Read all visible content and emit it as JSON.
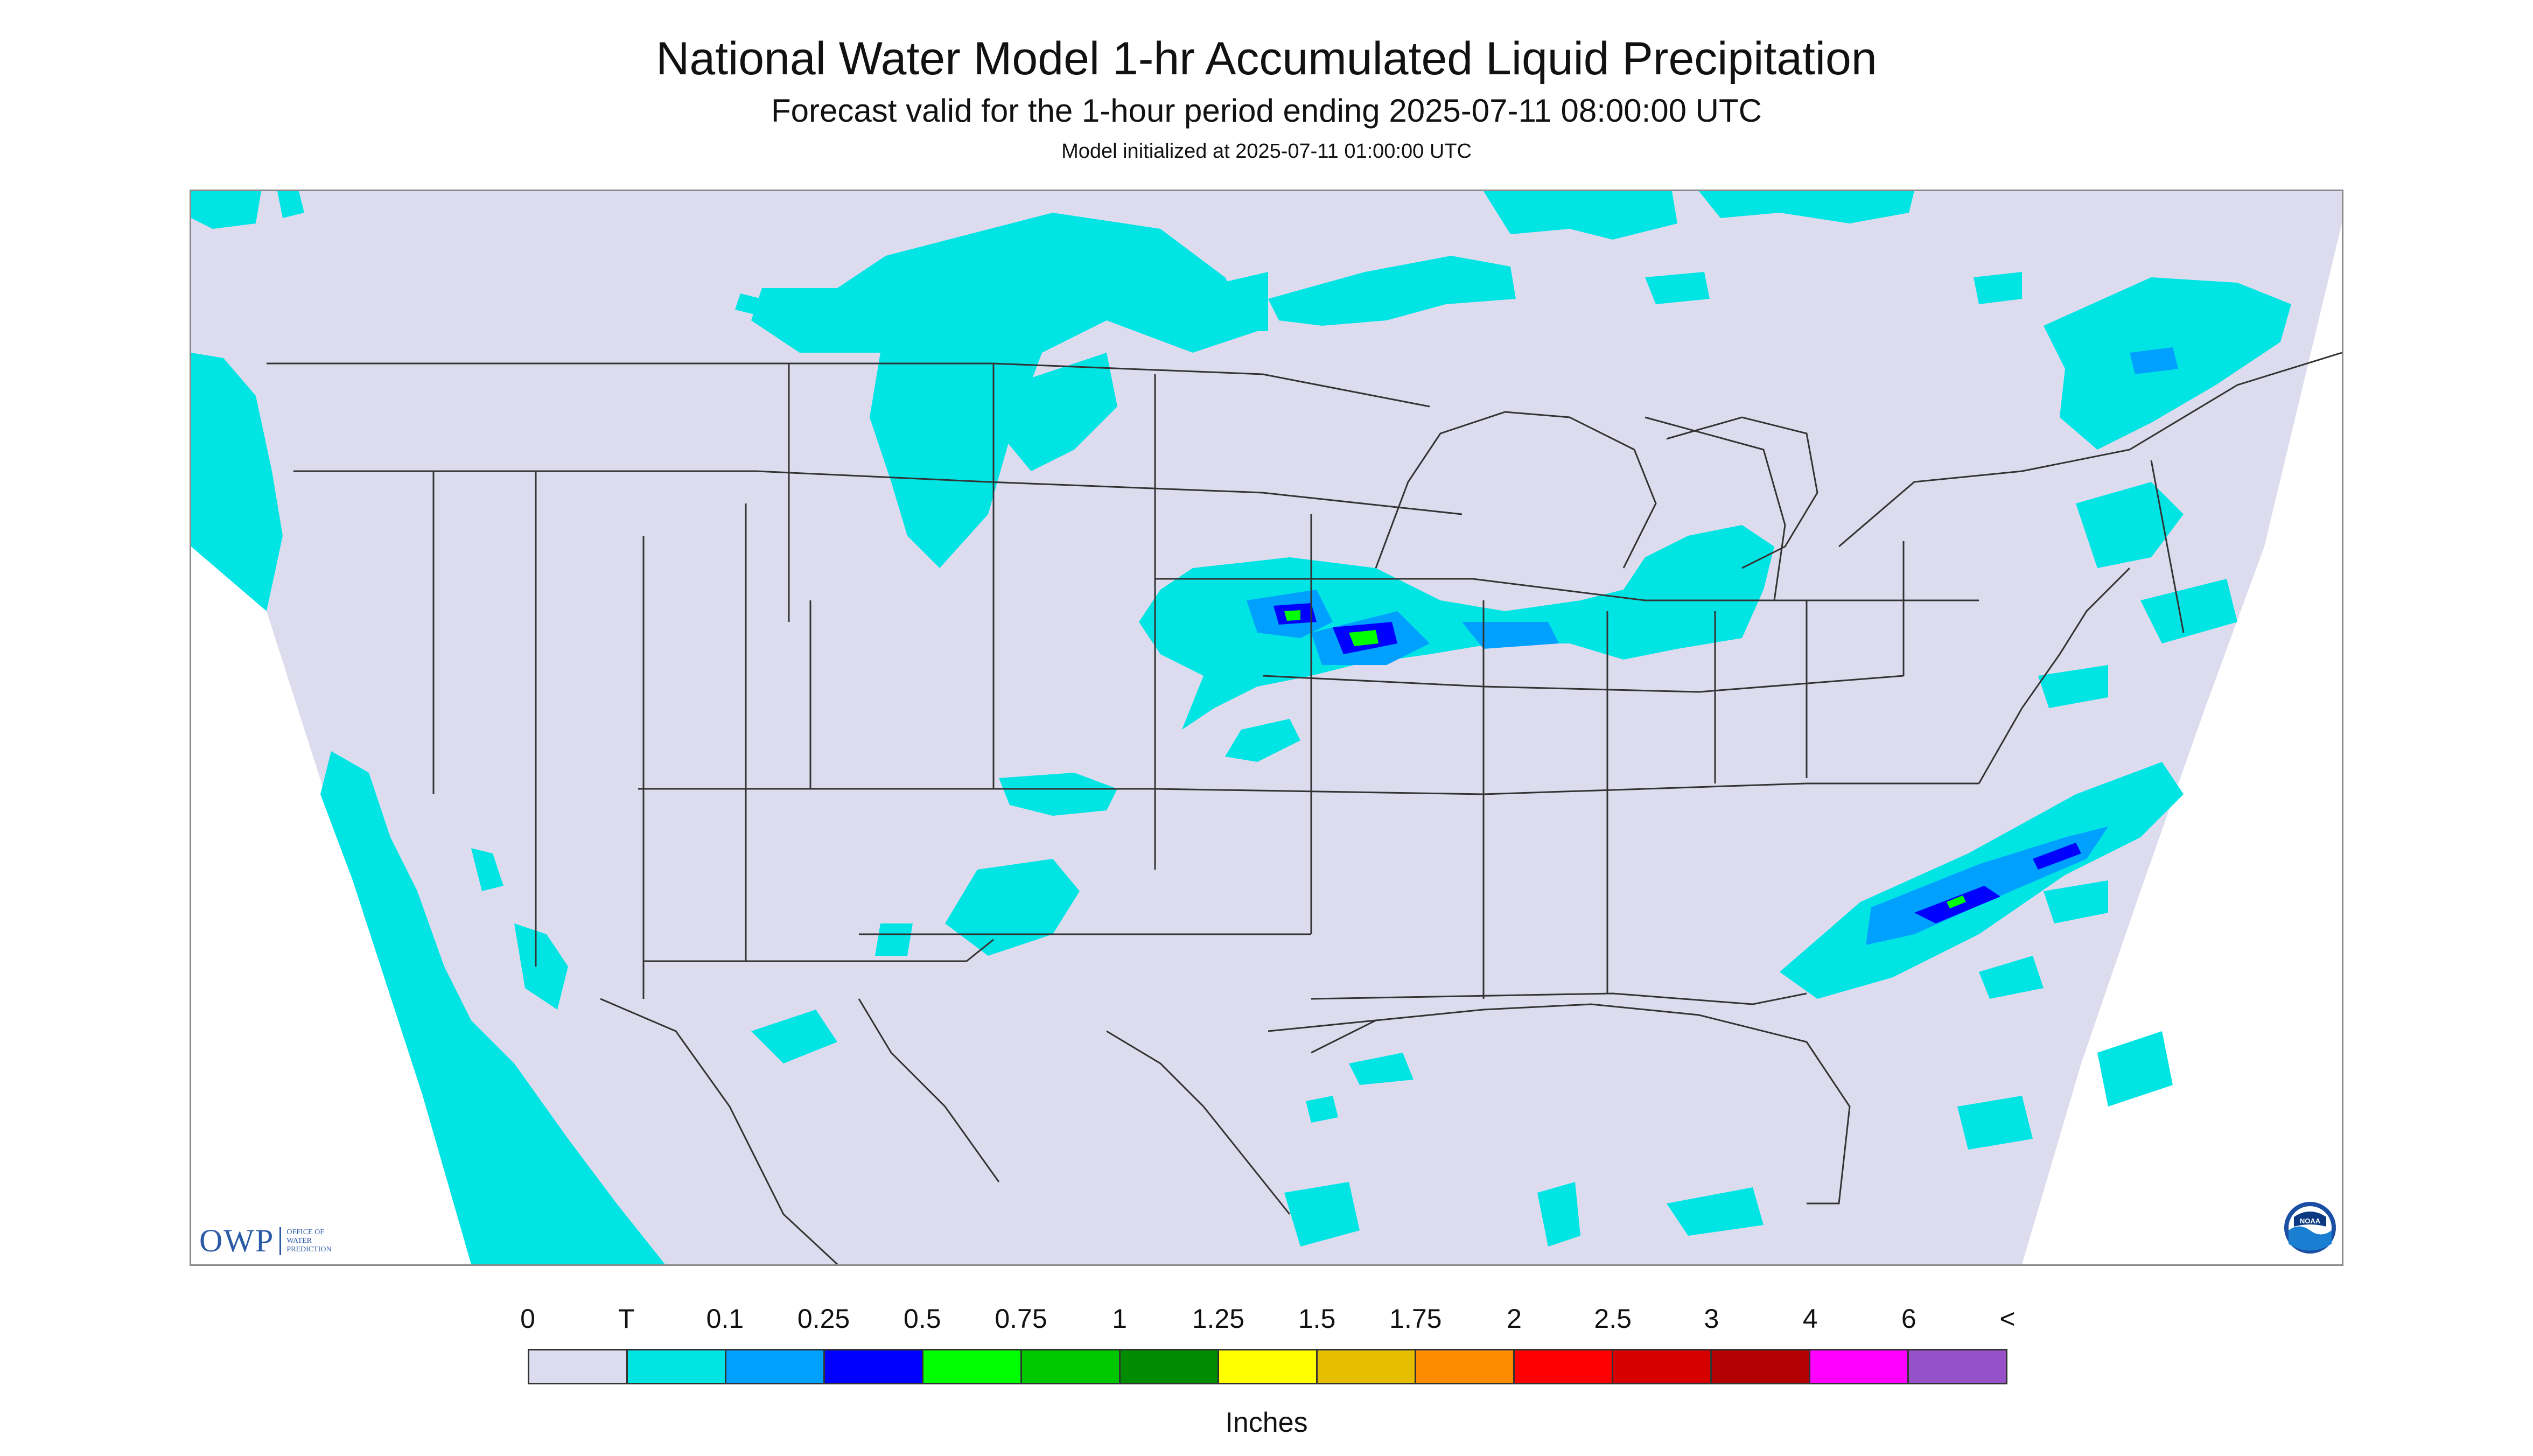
{
  "header": {
    "title": "National Water Model 1-hr Accumulated Liquid Precipitation",
    "subtitle": "Forecast valid for the 1-hour period ending 2025-07-11 08:00:00 UTC",
    "init_line": "Model initialized at 2025-07-11 01:00:00 UTC"
  },
  "logos": {
    "owp_abbrev": "OWP",
    "owp_line1": "OFFICE OF",
    "owp_line2": "WATER",
    "owp_line3": "PREDICTION",
    "noaa_text": "NOAA"
  },
  "legend": {
    "units": "Inches",
    "labels": [
      "0",
      "T",
      "0.1",
      "0.25",
      "0.5",
      "0.75",
      "1",
      "1.25",
      "1.5",
      "1.75",
      "2",
      "2.5",
      "3",
      "4",
      "6",
      "<"
    ],
    "colors": [
      "#dcdcee",
      "#00e4e4",
      "#00a0ff",
      "#0000ff",
      "#00ff00",
      "#00c800",
      "#008c00",
      "#ffff00",
      "#e6be00",
      "#ff8c00",
      "#ff0000",
      "#d70000",
      "#b40000",
      "#ff00ff",
      "#9650c8"
    ]
  },
  "map": {
    "land_color": "#dcdcee",
    "trace_color": "#00e4e4",
    "light_color": "#00a0ff",
    "moderate_color": "#0000ff",
    "heavy_color": "#00ff00",
    "boundary_color": "#333333"
  }
}
